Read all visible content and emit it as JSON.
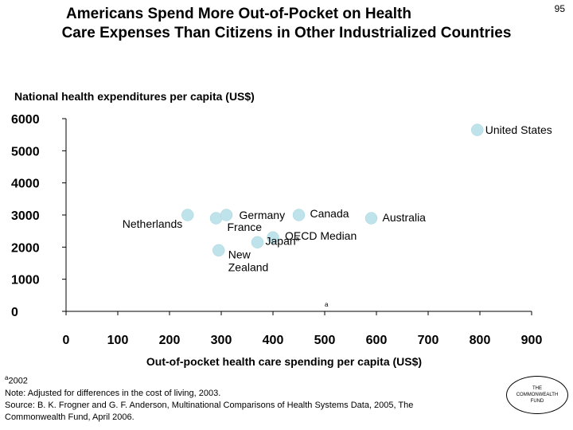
{
  "page_number": "95",
  "title": {
    "line1": "Americans Spend More Out-of-Pocket on Health",
    "line2": "Care Expenses Than Citizens in Other Industrialized Countries"
  },
  "colors": {
    "marker": "#bfe3ea",
    "axis": "#000000"
  },
  "chart_data": {
    "type": "scatter",
    "title": "Americans Spend More Out-of-Pocket on Health Care Expenses Than Citizens in Other Industrialized Countries",
    "ylabel": "National health expenditures per capita (US$)",
    "xlabel": "Out-of-pocket health care spending per capita (US$)",
    "xlim": [
      0,
      900
    ],
    "ylim": [
      0,
      6000
    ],
    "xticks": [
      0,
      100,
      200,
      300,
      400,
      500,
      600,
      700,
      800,
      900
    ],
    "yticks": [
      0,
      1000,
      2000,
      3000,
      4000,
      5000,
      6000
    ],
    "points": [
      {
        "label": "United States",
        "x": 795,
        "y": 5650
      },
      {
        "label": "Netherlands",
        "x": 235,
        "y": 3000
      },
      {
        "label": "France",
        "x": 290,
        "y": 2900
      },
      {
        "label": "Germany",
        "x": 310,
        "y": 3000
      },
      {
        "label": "Canada",
        "x": 450,
        "y": 3000
      },
      {
        "label": "Australia",
        "x": 590,
        "y": 2900
      },
      {
        "label": "OECD Median",
        "x": 400,
        "y": 2300
      },
      {
        "label": "Japan",
        "x": 370,
        "y": 2150
      },
      {
        "label": "New Zealand",
        "x": 295,
        "y": 1900
      }
    ],
    "annotations": [
      {
        "text": "a",
        "note": "superscript on Japan"
      },
      {
        "text": "a",
        "note": "small marker near x=500 on x-axis"
      }
    ]
  },
  "footnotes": {
    "a_note": "2002",
    "a_marker": "a",
    "note": "Note: Adjusted for differences in the cost of living, 2003.",
    "source": "Source: B. K. Frogner and G. F. Anderson, Multinational Comparisons of Health Systems Data, 2005, The",
    "source2": "Commonwealth Fund, April 2006."
  },
  "logo": {
    "line1": "THE",
    "line2": "COMMONWEALTH",
    "line3": "FUND"
  }
}
